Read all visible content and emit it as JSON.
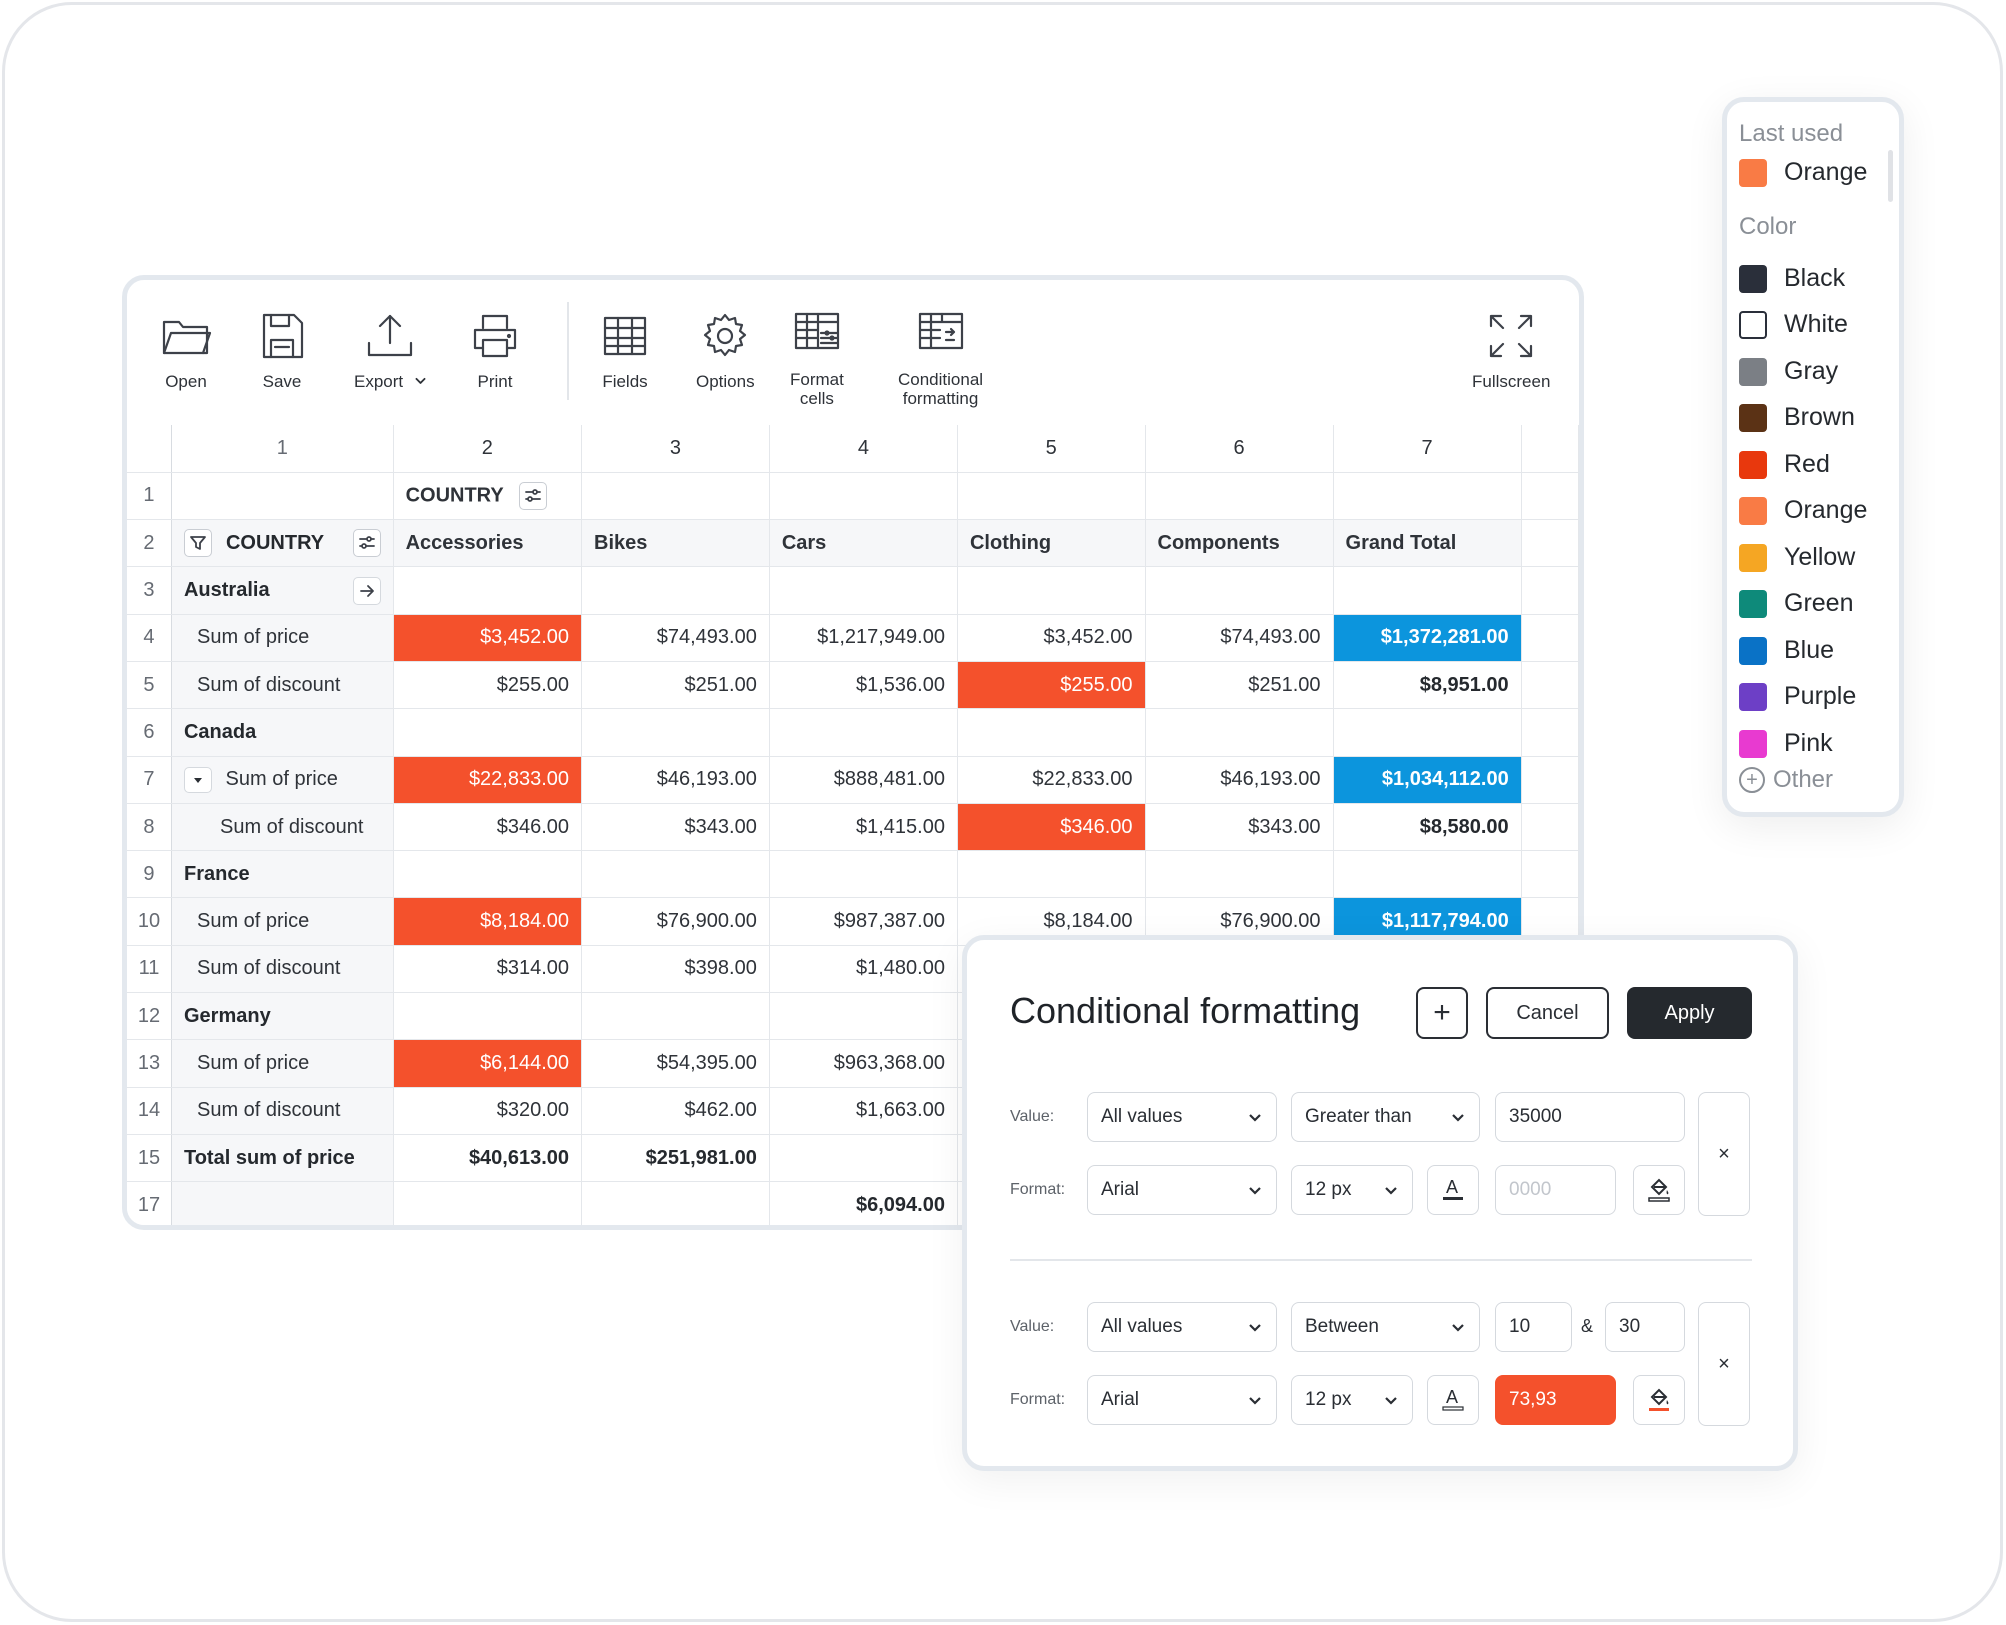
{
  "toolbar": {
    "open": "Open",
    "save": "Save",
    "export": "Export",
    "print": "Print",
    "fields": "Fields",
    "options": "Options",
    "format_cells": [
      "Format",
      "cells"
    ],
    "conditional_formatting": [
      "Conditional",
      "formatting"
    ],
    "fullscreen": "Fullscreen"
  },
  "grid": {
    "col_numbers": [
      "1",
      "2",
      "3",
      "4",
      "5",
      "6",
      "7"
    ],
    "row_numbers": [
      "1",
      "2",
      "3",
      "4",
      "5",
      "6",
      "7",
      "8",
      "9",
      "10",
      "11",
      "12",
      "13",
      "14",
      "15",
      "17"
    ],
    "column_field": "COUNTRY",
    "row_field": "COUNTRY",
    "columns": [
      "Accessories",
      "Bikes",
      "Cars",
      "Clothing",
      "Components",
      "Grand Total"
    ],
    "countries": [
      "Australia",
      "Canada",
      "France",
      "Germany"
    ],
    "measures": {
      "price": "Sum of price",
      "discount": "Sum of discount"
    },
    "australia_price": [
      "$3,452.00",
      "$74,493.00",
      "$1,217,949.00",
      "$3,452.00",
      "$74,493.00",
      "$1,372,281.00"
    ],
    "australia_discount": [
      "$255.00",
      "$251.00",
      "$1,536.00",
      "$255.00",
      "$251.00",
      "$8,951.00"
    ],
    "canada_price": [
      "$22,833.00",
      "$46,193.00",
      "$888,481.00",
      "$22,833.00",
      "$46,193.00",
      "$1,034,112.00"
    ],
    "canada_discount": [
      "$346.00",
      "$343.00",
      "$1,415.00",
      "$346.00",
      "$343.00",
      "$8,580.00"
    ],
    "france_price": [
      "$8,184.00",
      "$76,900.00",
      "$987,387.00",
      "$8,184.00",
      "$76,900.00",
      "$1,117,794.00"
    ],
    "france_discount": [
      "$314.00",
      "$398.00",
      "$1,480.00"
    ],
    "germany_price": [
      "$6,144.00",
      "$54,395.00",
      "$963,368.00"
    ],
    "germany_discount": [
      "$320.00",
      "$462.00",
      "$1,663.00"
    ],
    "total_label": "Total sum of price",
    "total_values": [
      "$40,613.00",
      "$251,981.00"
    ],
    "row17_value": "$6,094.00"
  },
  "color_menu": {
    "last_used_title": "Last used",
    "last_used": {
      "name": "Orange",
      "color": "#f97b45"
    },
    "color_title": "Color",
    "colors": [
      {
        "name": "Black",
        "color": "#2a2f3a"
      },
      {
        "name": "White",
        "color": "#ffffff"
      },
      {
        "name": "Gray",
        "color": "#7b7f85"
      },
      {
        "name": "Brown",
        "color": "#5b3215"
      },
      {
        "name": "Red",
        "color": "#e8380d"
      },
      {
        "name": "Orange",
        "color": "#f97b45"
      },
      {
        "name": "Yellow",
        "color": "#f5a623"
      },
      {
        "name": "Green",
        "color": "#0e8a7a"
      },
      {
        "name": "Blue",
        "color": "#0a72c6"
      },
      {
        "name": "Purple",
        "color": "#6d3fc6"
      },
      {
        "name": "Pink",
        "color": "#e83ad0"
      }
    ],
    "other": "Other"
  },
  "dialog": {
    "title": "Conditional formatting",
    "add": "+",
    "cancel": "Cancel",
    "apply": "Apply",
    "value_label": "Value:",
    "format_label": "Format:",
    "rule1": {
      "field": "All values",
      "condition": "Greater than",
      "value": "35000",
      "font": "Arial",
      "size": "12 px",
      "sample": "0000"
    },
    "rule2": {
      "field": "All values",
      "condition": "Between",
      "value1": "10",
      "amp": "&",
      "value2": "30",
      "font": "Arial",
      "size": "12 px",
      "sample": "73,93"
    },
    "remove": "×"
  },
  "colors": {
    "highlight_red": "#f4512c",
    "highlight_blue": "#0c95dd",
    "dark": "#25292e"
  }
}
